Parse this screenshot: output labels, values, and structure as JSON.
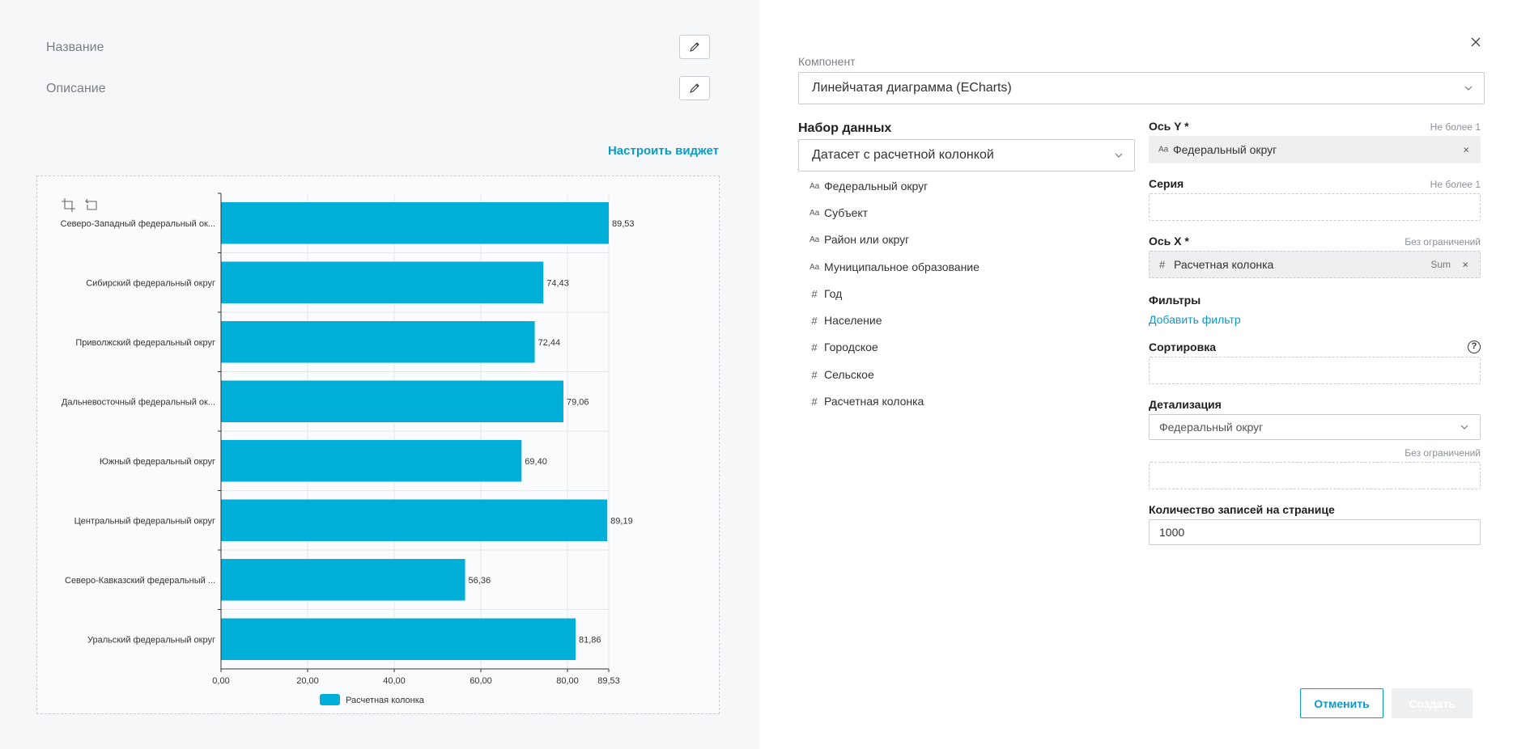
{
  "widget": {
    "name_label": "Название",
    "description_label": "Описание",
    "configure_link": "Настроить виджет"
  },
  "chart_data": {
    "type": "bar",
    "orientation": "horizontal",
    "categories": [
      "Северо-Западный федеральный ок...",
      "Сибирский федеральный округ",
      "Приволжский федеральный округ",
      "Дальневосточный федеральный ок...",
      "Южный федеральный округ",
      "Центральный федеральный округ",
      "Северо-Кавказский федеральный ...",
      "Уральский федеральный округ"
    ],
    "series": [
      {
        "name": "Расчетная колонка",
        "values": [
          89.53,
          74.43,
          72.44,
          79.06,
          69.4,
          89.19,
          56.36,
          81.86
        ],
        "labels": [
          "89,53",
          "74,43",
          "72,44",
          "79,06",
          "69,40",
          "89,19",
          "56,36",
          "81,86"
        ]
      }
    ],
    "xlim": [
      0,
      89.53
    ],
    "x_ticks": [
      0,
      20,
      40,
      60,
      80,
      89.53
    ],
    "x_tick_labels": [
      "0,00",
      "20,00",
      "40,00",
      "60,00",
      "80,00",
      "89,53"
    ],
    "legend_position": "bottom",
    "grid": true,
    "bar_color": "#00afd7"
  },
  "panel": {
    "component_label": "Компонент",
    "component_value": "Линейчатая диаграмма (ECharts)",
    "dataset_title": "Набор данных",
    "dataset_value": "Датасет с расчетной колонкой",
    "dataset_columns": [
      {
        "type": "text",
        "type_icon": "Aa",
        "name": "Федеральный округ"
      },
      {
        "type": "text",
        "type_icon": "Aa",
        "name": "Субъект"
      },
      {
        "type": "text",
        "type_icon": "Aa",
        "name": "Район или округ"
      },
      {
        "type": "text",
        "type_icon": "Aa",
        "name": "Муниципальное образование"
      },
      {
        "type": "number",
        "type_icon": "#",
        "name": "Год"
      },
      {
        "type": "number",
        "type_icon": "#",
        "name": "Население"
      },
      {
        "type": "number",
        "type_icon": "#",
        "name": "Городское"
      },
      {
        "type": "number",
        "type_icon": "#",
        "name": "Сельское"
      },
      {
        "type": "number",
        "type_icon": "#",
        "name": "Расчетная колонка"
      }
    ],
    "y_axis": {
      "title": "Ось Y *",
      "hint": "Не более 1",
      "chip_icon": "Aa",
      "chip_text": "Федеральный округ",
      "remove": "×"
    },
    "series": {
      "title": "Серия",
      "hint": "Не более 1"
    },
    "x_axis": {
      "title": "Ось X *",
      "hint": "Без ограничений",
      "chip_icon": "#",
      "chip_text": "Расчетная колонка",
      "agg": "Sum",
      "remove": "×"
    },
    "filters": {
      "title": "Фильтры",
      "add": "Добавить фильтр"
    },
    "sorting": {
      "title": "Сортировка",
      "help_icon": "?"
    },
    "detail": {
      "title": "Детализация",
      "value": "Федеральный округ",
      "hint": "Без ограничений"
    },
    "page_size": {
      "title": "Количество записей на странице",
      "value": "1000"
    },
    "cancel": "Отменить",
    "create": "Создать"
  },
  "colors": {
    "accent": "#0a9bc7",
    "bar": "#00afd7"
  }
}
